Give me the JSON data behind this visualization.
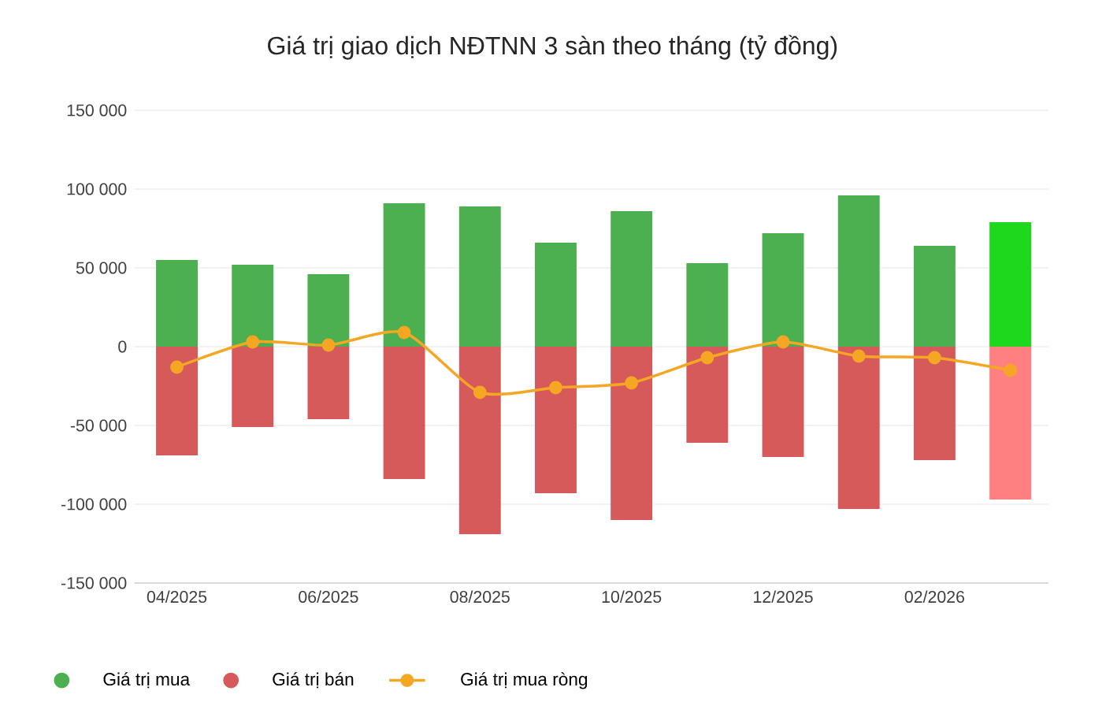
{
  "chart_data": {
    "type": "bar",
    "title": "Giá trị giao dịch NĐTNN 3 sàn theo tháng (tỷ đồng)",
    "categories": [
      "04/2025",
      null,
      "06/2025",
      null,
      "08/2025",
      null,
      "10/2025",
      null,
      "12/2025",
      null,
      "02/2026",
      null
    ],
    "series": [
      {
        "name": "Giá trị mua",
        "color": "#4caf50",
        "colors": [
          "#4caf50",
          "#4caf50",
          "#4caf50",
          "#4caf50",
          "#4caf50",
          "#4caf50",
          "#4caf50",
          "#4caf50",
          "#4caf50",
          "#4caf50",
          "#4caf50",
          "#1ed81e"
        ],
        "values": [
          55000,
          52000,
          46000,
          91000,
          89000,
          66000,
          86000,
          53000,
          72000,
          96000,
          64000,
          79000
        ]
      },
      {
        "name": "Giá trị bán",
        "color": "#d65a5a",
        "colors": [
          "#d65a5a",
          "#d65a5a",
          "#d65a5a",
          "#d65a5a",
          "#d65a5a",
          "#d65a5a",
          "#d65a5a",
          "#d65a5a",
          "#d65a5a",
          "#d65a5a",
          "#d65a5a",
          "#ff8080"
        ],
        "values": [
          -69000,
          -51000,
          -46000,
          -84000,
          -119000,
          -93000,
          -110000,
          -61000,
          -70000,
          -103000,
          -72000,
          -97000
        ]
      },
      {
        "name": "Giá trị mua ròng",
        "type": "line",
        "color": "#f5a623",
        "values": [
          -13000,
          3000,
          1000,
          9000,
          -29000,
          -26000,
          -23000,
          -7000,
          3000,
          -6000,
          -7000,
          -15000
        ]
      }
    ],
    "stacked": true,
    "ylim": [
      -150000,
      150000
    ],
    "yticks": [
      {
        "value": -150000,
        "label": "-150 000"
      },
      {
        "value": -100000,
        "label": "-100 000"
      },
      {
        "value": -50000,
        "label": "-50 000"
      },
      {
        "value": 0,
        "label": "0"
      },
      {
        "value": 50000,
        "label": "50 000"
      },
      {
        "value": 100000,
        "label": "100 000"
      },
      {
        "value": 150000,
        "label": "150 000"
      }
    ],
    "grid": "y",
    "legend": "bottom left",
    "marker": "circle",
    "line_style": "solid"
  }
}
